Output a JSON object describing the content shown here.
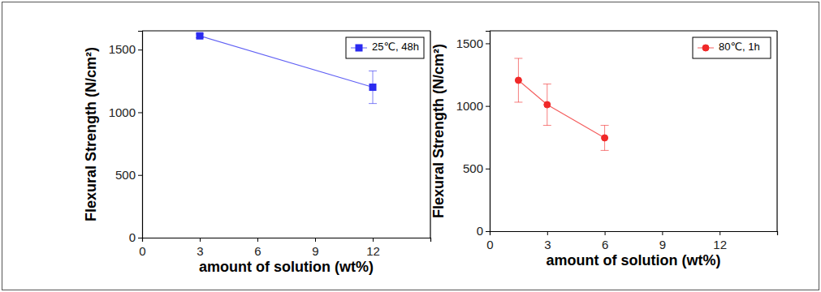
{
  "chart_data": [
    {
      "type": "line",
      "xlabel": "amount of solution (wt%)",
      "ylabel": "Flexural Strength (N/cm²)",
      "x": [
        3,
        12
      ],
      "xlim": [
        0,
        15
      ],
      "xticks": [
        0,
        3,
        6,
        9,
        12
      ],
      "ylim": [
        0,
        1650
      ],
      "yticks": [
        0,
        500,
        1000,
        1500
      ],
      "legend": "upper right",
      "series": [
        {
          "name": "25℃, 48h",
          "color": "#2b2bf0",
          "marker": "square",
          "values": [
            1610,
            1200
          ],
          "errors": [
            15,
            130
          ]
        }
      ]
    },
    {
      "type": "line",
      "xlabel": "amount of solution (wt%)",
      "ylabel": "Flexural Strength (N/cm²)",
      "x": [
        1.5,
        3,
        6
      ],
      "xlim": [
        0,
        15
      ],
      "xticks": [
        0,
        3,
        6,
        9,
        12
      ],
      "ylim": [
        0,
        1600
      ],
      "yticks": [
        0,
        500,
        1000,
        1500
      ],
      "legend": "upper right",
      "series": [
        {
          "name": "80℃, 1h",
          "color": "#f02828",
          "marker": "circle",
          "values": [
            1205,
            1010,
            745
          ],
          "errors": [
            175,
            165,
            100
          ]
        }
      ]
    }
  ]
}
